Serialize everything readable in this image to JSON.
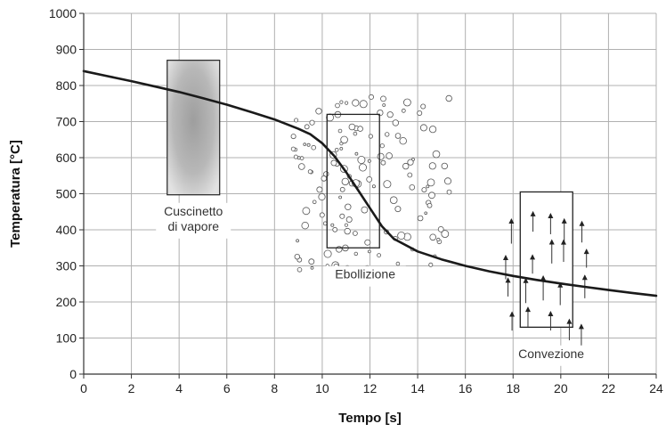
{
  "chart_data": {
    "type": "line",
    "xlabel": "Tempo [s]",
    "ylabel": "Temperatura [°C]",
    "xlim": [
      0,
      24
    ],
    "ylim": [
      0,
      1000
    ],
    "xticks": [
      0,
      2,
      4,
      6,
      8,
      10,
      12,
      14,
      16,
      18,
      20,
      22,
      24
    ],
    "yticks": [
      0,
      100,
      200,
      300,
      400,
      500,
      600,
      700,
      800,
      900,
      1000
    ],
    "grid": true,
    "series": [
      {
        "x": [
          0,
          1,
          2,
          3,
          4,
          5,
          6,
          7,
          8,
          9,
          9.5,
          10,
          10.5,
          11,
          11.5,
          12,
          12.5,
          13,
          14,
          15,
          16,
          17,
          18,
          19,
          20,
          21,
          22,
          23,
          24
        ],
        "y": [
          840,
          826,
          812,
          797,
          782,
          765,
          747,
          727,
          706,
          680,
          665,
          640,
          605,
          560,
          510,
          460,
          410,
          375,
          340,
          318,
          300,
          285,
          272,
          261,
          251,
          242,
          233,
          225,
          217
        ]
      }
    ],
    "annotations": [
      {
        "text": [
          "Cuscinetto",
          "di vapore"
        ],
        "x": 4.6,
        "y": 440
      },
      {
        "text": [
          "Ebollizione"
        ],
        "x": 11.8,
        "y": 265
      },
      {
        "text": [
          "Convezione"
        ],
        "x": 19.6,
        "y": 45
      }
    ],
    "regions": [
      {
        "label": "vapor-blanket",
        "x0": 3.5,
        "x1": 5.7,
        "y0": 497,
        "y1": 870,
        "style": "gradient",
        "color": "#a8a8a8"
      },
      {
        "label": "boiling",
        "x0": 10.2,
        "x1": 12.4,
        "y0": 350,
        "y1": 720,
        "style": "bubbles"
      },
      {
        "label": "convection",
        "x0": 18.3,
        "x1": 20.5,
        "y0": 130,
        "y1": 505,
        "style": "arrows"
      }
    ],
    "colors": {
      "curve": "#1a1a1a",
      "grid": "#b0b0b0",
      "axis": "#333333"
    }
  }
}
